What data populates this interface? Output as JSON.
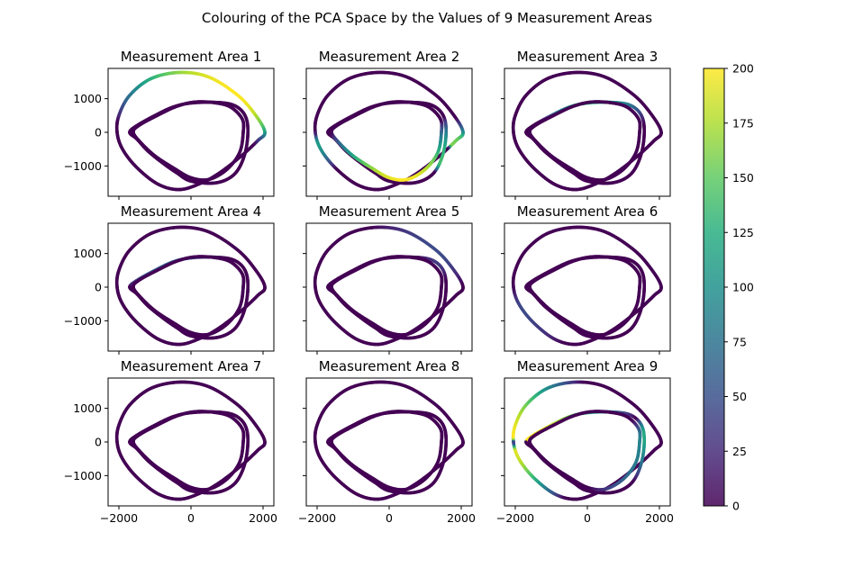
{
  "chart_data": {
    "type": "line",
    "title": "Colouring of the PCA Space by the Values of 9 Measurement Areas",
    "xlim": [
      -2300,
      2300
    ],
    "ylim": [
      -1900,
      1900
    ],
    "x_ticks": [
      -2000,
      0,
      2000
    ],
    "x_tick_labels": [
      "−2000",
      "0",
      "2000"
    ],
    "y_ticks": [
      1000,
      0,
      -1000
    ],
    "y_tick_labels": [
      "1000",
      "0",
      "−1000"
    ],
    "grid": false,
    "shared_axes": true,
    "colormap": "viridis",
    "colorbar": {
      "range": [
        0,
        200
      ],
      "ticks": [
        0,
        25,
        50,
        75,
        100,
        125,
        150,
        175,
        200
      ],
      "tick_labels": [
        "0",
        "25",
        "50",
        "75",
        "100",
        "125",
        "150",
        "175",
        "200"
      ]
    },
    "loops": [
      [
        [
          -2050,
          0
        ],
        [
          -2000,
          500
        ],
        [
          -1700,
          1100
        ],
        [
          -1100,
          1600
        ],
        [
          -300,
          1780
        ],
        [
          500,
          1640
        ],
        [
          1300,
          1100
        ],
        [
          1800,
          500
        ],
        [
          2050,
          0
        ],
        [
          1850,
          -250
        ],
        [
          1400,
          -700
        ],
        [
          800,
          -1200
        ],
        [
          300,
          -1500
        ],
        [
          -300,
          -1700
        ],
        [
          -900,
          -1550
        ],
        [
          -1500,
          -1050
        ],
        [
          -1900,
          -500
        ],
        [
          -2050,
          0
        ]
      ],
      [
        [
          -1700,
          0
        ],
        [
          -1500,
          200
        ],
        [
          -1000,
          500
        ],
        [
          -500,
          750
        ],
        [
          0,
          870
        ],
        [
          700,
          890
        ],
        [
          1200,
          800
        ],
        [
          1500,
          500
        ],
        [
          1580,
          0
        ],
        [
          1480,
          -700
        ],
        [
          1200,
          -1250
        ],
        [
          700,
          -1500
        ],
        [
          0,
          -1450
        ],
        [
          -400,
          -1200
        ],
        [
          -800,
          -900
        ],
        [
          -1200,
          -550
        ],
        [
          -1500,
          -200
        ],
        [
          -1700,
          0
        ]
      ],
      [
        [
          -1600,
          0
        ],
        [
          -1450,
          200
        ],
        [
          -900,
          520
        ],
        [
          -400,
          770
        ],
        [
          100,
          900
        ],
        [
          650,
          880
        ],
        [
          1100,
          750
        ],
        [
          1420,
          400
        ],
        [
          1450,
          0
        ],
        [
          1350,
          -600
        ],
        [
          1000,
          -1100
        ],
        [
          500,
          -1400
        ],
        [
          0,
          -1350
        ],
        [
          -500,
          -1050
        ],
        [
          -1000,
          -700
        ],
        [
          -1400,
          -300
        ],
        [
          -1600,
          0
        ]
      ]
    ],
    "panels": [
      {
        "title": "Measurement Area 1",
        "ranges": [
          {
            "loop": 0,
            "start": 0.04,
            "end": 0.55,
            "peak": 0.35,
            "value": 200
          }
        ]
      },
      {
        "title": "Measurement Area 2",
        "ranges": [
          {
            "loop": 0,
            "start": 0.42,
            "end": 0.56,
            "peak": 0.55,
            "value": 160
          },
          {
            "loop": 1,
            "start": 0.42,
            "end": 0.58,
            "peak": 0.55,
            "value": 140
          },
          {
            "loop": 0,
            "start": 0.88,
            "end": 1.0,
            "peak": 0.96,
            "value": 110
          },
          {
            "loop": 2,
            "start": 0.45,
            "end": 1.0,
            "peak": 0.7,
            "value": 200
          }
        ]
      },
      {
        "title": "Measurement Area 3",
        "ranges": [
          {
            "loop": 1,
            "start": 0.08,
            "end": 0.45,
            "peak": 0.22,
            "value": 125
          }
        ]
      },
      {
        "title": "Measurement Area 4",
        "ranges": [
          {
            "loop": 1,
            "start": 0.0,
            "end": 0.32,
            "peak": 0.14,
            "value": 65
          }
        ]
      },
      {
        "title": "Measurement Area 5",
        "ranges": [
          {
            "loop": 0,
            "start": 0.22,
            "end": 0.46,
            "peak": 0.36,
            "value": 45
          },
          {
            "loop": 1,
            "start": 0.3,
            "end": 0.45,
            "peak": 0.38,
            "value": 35
          }
        ]
      },
      {
        "title": "Measurement Area 6",
        "ranges": [
          {
            "loop": 0,
            "start": 0.8,
            "end": 1.0,
            "peak": 0.92,
            "value": 45
          }
        ]
      },
      {
        "title": "Measurement Area 7",
        "ranges": []
      },
      {
        "title": "Measurement Area 8",
        "ranges": []
      },
      {
        "title": "Measurement Area 9",
        "ranges": [
          {
            "loop": 0,
            "start": 0.0,
            "end": 0.25,
            "peak": 0.02,
            "value": 200
          },
          {
            "loop": 0,
            "start": 0.8,
            "end": 1.0,
            "peak": 0.97,
            "value": 190
          },
          {
            "loop": 1,
            "start": 0.0,
            "end": 0.38,
            "peak": 0.02,
            "value": 200
          },
          {
            "loop": 1,
            "start": 0.38,
            "end": 0.58,
            "peak": 0.45,
            "value": 120
          },
          {
            "loop": 2,
            "start": 0.4,
            "end": 0.75,
            "peak": 0.5,
            "value": 90
          }
        ]
      }
    ]
  }
}
